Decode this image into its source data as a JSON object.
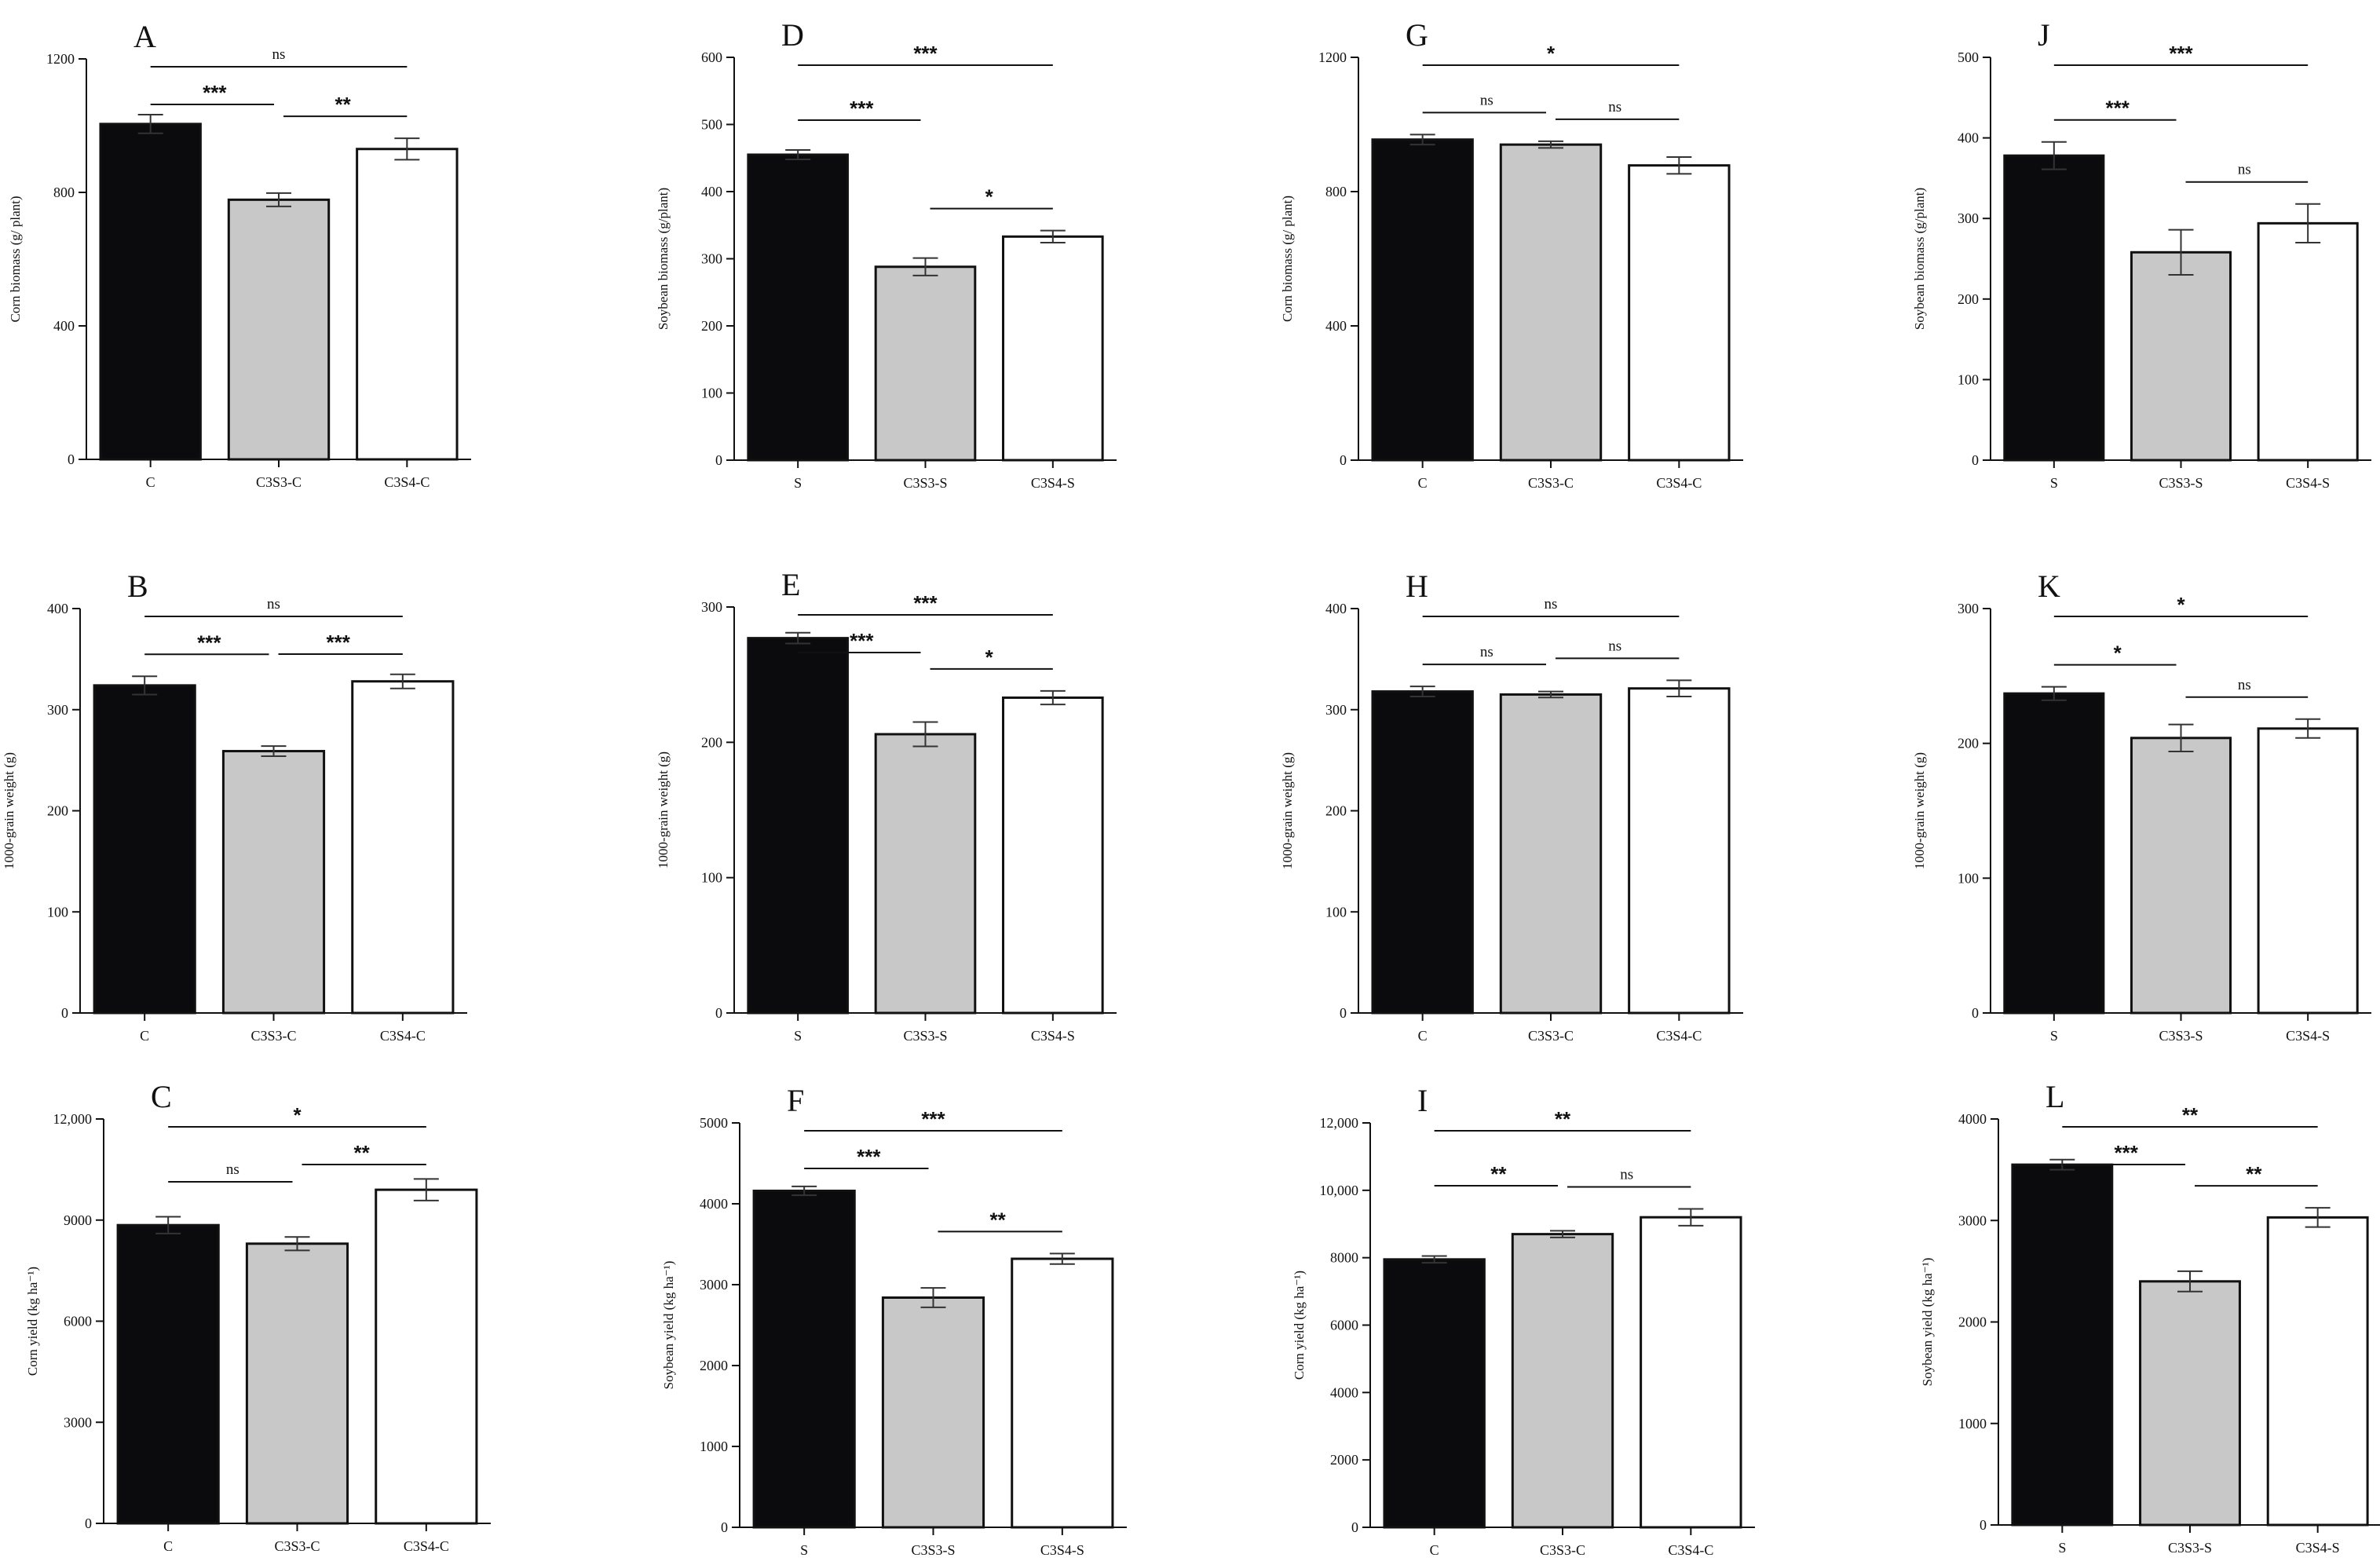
{
  "chart_data": [
    {
      "type": "bar",
      "letter": "A",
      "ylabel": "Corn biomass (g/ plant)",
      "categories": [
        "C",
        "C3S3-C",
        "C3S4-C"
      ],
      "values": [
        1005,
        778,
        930
      ],
      "errors": [
        28,
        20,
        32
      ],
      "ylim": [
        0,
        1200
      ],
      "yticks": [
        "0",
        "400",
        "800",
        "1200"
      ],
      "significance": [
        {
          "from": 0,
          "to": 2,
          "label": "ns"
        },
        {
          "from": 0,
          "to": 1,
          "label": "***"
        },
        {
          "from": 1,
          "to": 2,
          "label": "**"
        }
      ]
    },
    {
      "type": "bar",
      "letter": "D",
      "ylabel": "Soybean biomass (g/plant)",
      "categories": [
        "S",
        "C3S3-S",
        "C3S4-S"
      ],
      "values": [
        455,
        288,
        333
      ],
      "errors": [
        7,
        13,
        9
      ],
      "ylim": [
        0,
        600
      ],
      "yticks": [
        "0",
        "100",
        "200",
        "300",
        "400",
        "500",
        "600"
      ],
      "significance": [
        {
          "from": 0,
          "to": 2,
          "label": "***"
        },
        {
          "from": 0,
          "to": 1,
          "label": "***"
        },
        {
          "from": 1,
          "to": 2,
          "label": "*"
        }
      ]
    },
    {
      "type": "bar",
      "letter": "G",
      "ylabel": "Corn biomass (g/ plant)",
      "categories": [
        "C",
        "C3S3-C",
        "C3S4-C"
      ],
      "values": [
        955,
        940,
        878
      ],
      "errors": [
        15,
        10,
        25
      ],
      "ylim": [
        0,
        1200
      ],
      "yticks": [
        "0",
        "400",
        "800",
        "1200"
      ],
      "significance": [
        {
          "from": 0,
          "to": 2,
          "label": "*"
        },
        {
          "from": 0,
          "to": 1,
          "label": "ns"
        },
        {
          "from": 1,
          "to": 2,
          "label": "ns"
        }
      ]
    },
    {
      "type": "bar",
      "letter": "J",
      "ylabel": "Soybean biomass (g/plant)",
      "categories": [
        "S",
        "C3S3-S",
        "C3S4-S"
      ],
      "values": [
        378,
        258,
        294
      ],
      "errors": [
        17,
        28,
        24
      ],
      "ylim": [
        0,
        500
      ],
      "yticks": [
        "0",
        "100",
        "200",
        "300",
        "400",
        "500"
      ],
      "significance": [
        {
          "from": 0,
          "to": 2,
          "label": "***"
        },
        {
          "from": 0,
          "to": 1,
          "label": "***"
        },
        {
          "from": 1,
          "to": 2,
          "label": "ns"
        }
      ]
    },
    {
      "type": "bar",
      "letter": "B",
      "ylabel": "1000-grain weight (g)",
      "categories": [
        "C",
        "C3S3-C",
        "C3S4-C"
      ],
      "values": [
        324,
        259,
        328
      ],
      "errors": [
        9,
        5,
        7
      ],
      "ylim": [
        0,
        400
      ],
      "yticks": [
        "0",
        "100",
        "200",
        "300",
        "400"
      ],
      "significance": [
        {
          "from": 0,
          "to": 2,
          "label": "ns"
        },
        {
          "from": 0,
          "to": 1,
          "label": "***"
        },
        {
          "from": 1,
          "to": 2,
          "label": "***"
        }
      ]
    },
    {
      "type": "bar",
      "letter": "E",
      "ylabel": "1000-grain weight (g)",
      "categories": [
        "S",
        "C3S3-S",
        "C3S4-S"
      ],
      "values": [
        277,
        206,
        233
      ],
      "errors": [
        4,
        9,
        5
      ],
      "ylim": [
        0,
        300
      ],
      "yticks": [
        "0",
        "100",
        "200",
        "300"
      ],
      "significance": [
        {
          "from": 0,
          "to": 2,
          "label": "***"
        },
        {
          "from": 0,
          "to": 1,
          "label": "***"
        },
        {
          "from": 1,
          "to": 2,
          "label": "*"
        }
      ]
    },
    {
      "type": "bar",
      "letter": "H",
      "ylabel": "1000-grain weight (g)",
      "categories": [
        "C",
        "C3S3-C",
        "C3S4-C"
      ],
      "values": [
        318,
        315,
        321
      ],
      "errors": [
        5,
        3,
        8
      ],
      "ylim": [
        0,
        400
      ],
      "yticks": [
        "0",
        "100",
        "200",
        "300",
        "400"
      ],
      "significance": [
        {
          "from": 0,
          "to": 2,
          "label": "ns"
        },
        {
          "from": 0,
          "to": 1,
          "label": "ns"
        },
        {
          "from": 1,
          "to": 2,
          "label": "ns"
        }
      ]
    },
    {
      "type": "bar",
      "letter": "K",
      "ylabel": "1000-grain weight (g)",
      "categories": [
        "S",
        "C3S3-S",
        "C3S4-S"
      ],
      "values": [
        237,
        204,
        211
      ],
      "errors": [
        5,
        10,
        7
      ],
      "ylim": [
        0,
        300
      ],
      "yticks": [
        "0",
        "100",
        "200",
        "300"
      ],
      "significance": [
        {
          "from": 0,
          "to": 2,
          "label": "*"
        },
        {
          "from": 0,
          "to": 1,
          "label": "*"
        },
        {
          "from": 1,
          "to": 2,
          "label": "ns"
        }
      ]
    },
    {
      "type": "bar",
      "letter": "C",
      "ylabel": "Corn yield (kg ha⁻¹)",
      "categories": [
        "C",
        "C3S3-C",
        "C3S4-C"
      ],
      "values": [
        8850,
        8300,
        9900
      ],
      "errors": [
        250,
        200,
        320
      ],
      "ylim": [
        0,
        12000
      ],
      "yticks": [
        "0",
        "3000",
        "6000",
        "9000",
        "12,000"
      ],
      "significance": [
        {
          "from": 0,
          "to": 2,
          "label": "*"
        },
        {
          "from": 0,
          "to": 1,
          "label": "ns"
        },
        {
          "from": 1,
          "to": 2,
          "label": "**"
        }
      ]
    },
    {
      "type": "bar",
      "letter": "F",
      "ylabel": "Soybean yield (kg ha⁻¹)",
      "categories": [
        "S",
        "C3S3-S",
        "C3S4-S"
      ],
      "values": [
        4160,
        2840,
        3320
      ],
      "errors": [
        55,
        120,
        65
      ],
      "ylim": [
        0,
        5000
      ],
      "yticks": [
        "0",
        "1000",
        "2000",
        "3000",
        "4000",
        "5000"
      ],
      "significance": [
        {
          "from": 0,
          "to": 2,
          "label": "***"
        },
        {
          "from": 0,
          "to": 1,
          "label": "***"
        },
        {
          "from": 1,
          "to": 2,
          "label": "**"
        }
      ]
    },
    {
      "type": "bar",
      "letter": "I",
      "ylabel": "Corn yield (kg ha⁻¹)",
      "categories": [
        "C",
        "C3S3-C",
        "C3S4-C"
      ],
      "values": [
        7950,
        8700,
        9200
      ],
      "errors": [
        100,
        100,
        250
      ],
      "ylim": [
        0,
        12000
      ],
      "yticks": [
        "0",
        "2000",
        "4000",
        "6000",
        "8000",
        "10,000",
        "12,000"
      ],
      "significance": [
        {
          "from": 0,
          "to": 2,
          "label": "**"
        },
        {
          "from": 0,
          "to": 1,
          "label": "**"
        },
        {
          "from": 1,
          "to": 2,
          "label": "ns"
        }
      ]
    },
    {
      "type": "bar",
      "letter": "L",
      "ylabel": "Soybean yield (kg ha⁻¹)",
      "categories": [
        "S",
        "C3S3-S",
        "C3S4-S"
      ],
      "values": [
        3550,
        2400,
        3030
      ],
      "errors": [
        50,
        100,
        95
      ],
      "ylim": [
        0,
        4000
      ],
      "yticks": [
        "0",
        "1000",
        "2000",
        "3000",
        "4000"
      ],
      "significance": [
        {
          "from": 0,
          "to": 2,
          "label": "**"
        },
        {
          "from": 0,
          "to": 1,
          "label": "***"
        },
        {
          "from": 1,
          "to": 2,
          "label": "**"
        }
      ]
    }
  ],
  "colors": {
    "bar_fills": [
      "#0b0b0e",
      "#c8c8c8",
      "#ffffff"
    ],
    "ink": "#111111"
  }
}
